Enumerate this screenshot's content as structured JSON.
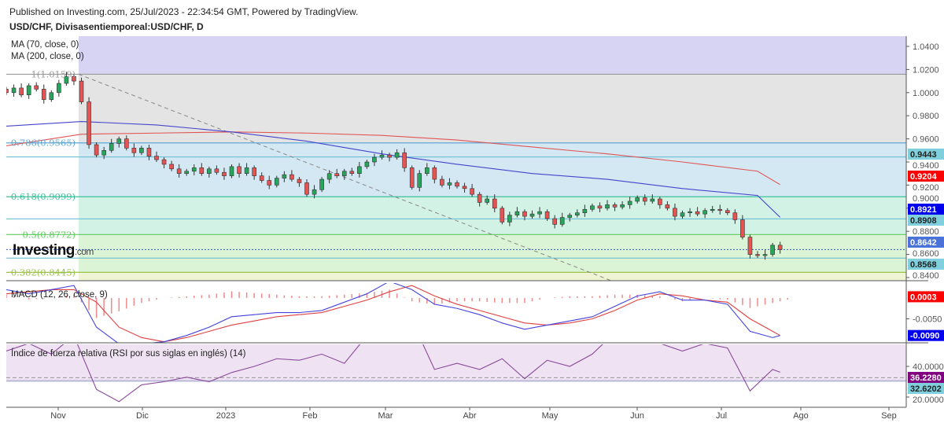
{
  "header": {
    "published": "Published on Investing.com, 25/Jul/2023 - 22:34:54 GMT, Powered by TradingView.",
    "symbol": "USD/CHF, Divisasentiemporeal:USD/CHF, D"
  },
  "logo": {
    "text": "Investing",
    "suffix": ".com"
  },
  "chart_data": [
    {
      "type": "candlestick",
      "title": "USD/CHF, Divisasentiemporeal:USD/CHF, D",
      "legend": [
        "MA (70, close, 0)",
        "MA (200, close, 0)"
      ],
      "x_ticks": [
        "Nov",
        "Dic",
        "2023",
        "Feb",
        "Mar",
        "Abr",
        "May",
        "Jun",
        "Jul",
        "Ago",
        "Sep"
      ],
      "y_ticks": [
        "1.0400",
        "1.0200",
        "1.0000",
        "0.9800",
        "0.9600",
        "0.9400",
        "0.9200",
        "0.9000",
        "0.8800",
        "0.8600",
        "0.8400"
      ],
      "ylim": [
        0.835,
        1.045
      ],
      "closes": [
        1.0,
        1.004,
        0.998,
        1.006,
        1.003,
        0.994,
        1.0,
        1.008,
        1.014,
        1.01,
        0.992,
        0.955,
        0.946,
        0.95,
        0.956,
        0.96,
        0.952,
        0.948,
        0.952,
        0.945,
        0.942,
        0.938,
        0.934,
        0.93,
        0.932,
        0.935,
        0.93,
        0.934,
        0.931,
        0.928,
        0.936,
        0.93,
        0.935,
        0.928,
        0.924,
        0.92,
        0.926,
        0.929,
        0.925,
        0.922,
        0.912,
        0.916,
        0.925,
        0.93,
        0.928,
        0.932,
        0.93,
        0.936,
        0.94,
        0.944,
        0.946,
        0.944,
        0.948,
        0.935,
        0.918,
        0.93,
        0.935,
        0.925,
        0.92,
        0.922,
        0.919,
        0.917,
        0.912,
        0.905,
        0.908,
        0.9,
        0.888,
        0.894,
        0.897,
        0.893,
        0.895,
        0.897,
        0.891,
        0.886,
        0.892,
        0.894,
        0.896,
        0.899,
        0.902,
        0.9,
        0.903,
        0.901,
        0.903,
        0.906,
        0.909,
        0.906,
        0.908,
        0.903,
        0.9,
        0.893,
        0.896,
        0.897,
        0.895,
        0.898,
        0.899,
        0.898,
        0.896,
        0.89,
        0.875,
        0.86,
        0.859,
        0.86,
        0.868,
        0.8642
      ],
      "ma70": [
        0.971,
        0.975,
        0.972,
        0.966,
        0.958,
        0.947,
        0.938,
        0.93,
        0.925,
        0.917,
        0.911,
        0.8921
      ],
      "ma200": [
        0.954,
        0.964,
        0.965,
        0.966,
        0.965,
        0.963,
        0.959,
        0.953,
        0.947,
        0.94,
        0.932,
        0.9204
      ],
      "fib_levels": [
        {
          "ratio": "1",
          "price": 1.0159,
          "label": "1(1.0159)",
          "color": "#999999"
        },
        {
          "ratio": "0.786",
          "price": 0.9565,
          "label": "0.786(0.9565)",
          "color": "#5fa8d3"
        },
        {
          "ratio": "0.618",
          "price": 0.9099,
          "label": "0.618(0.9099)",
          "color": "#3cbf9a"
        },
        {
          "ratio": "0.5",
          "price": 0.8772,
          "label": "0.5(0.8772)",
          "color": "#5fc85f"
        },
        {
          "ratio": "0.382",
          "price": 0.8445,
          "label": "0.382(0.8445)",
          "color": "#9bc34a"
        }
      ],
      "horizontal_lines": [
        0.9443,
        0.8908,
        0.8568
      ],
      "price_badges": [
        {
          "text": "0.9443",
          "price": 0.9443,
          "color": "#7fcfdc",
          "text_color": "#222"
        },
        {
          "text": "0.9204",
          "price": 0.9204,
          "color": "#ff0000",
          "text_color": "#fff"
        },
        {
          "text": "0.8921",
          "price": 0.8921,
          "color": "#0000ee",
          "text_color": "#fff"
        },
        {
          "text": "0.8908",
          "price": 0.8908,
          "color": "#7fcfdc",
          "text_color": "#222"
        },
        {
          "text": "0.8642",
          "price": 0.8642,
          "color": "#4a72d8",
          "text_color": "#fff"
        },
        {
          "text": "0.8568",
          "price": 0.8568,
          "color": "#7fcfdc",
          "text_color": "#222"
        }
      ],
      "colors": {
        "up": "#26a65b",
        "down": "#e55353",
        "ma70": "#4444cc",
        "ma200": "#e05555"
      }
    },
    {
      "type": "line",
      "title": "MACD (12, 26, close, 9)",
      "y_ticks": [
        "-0.0050"
      ],
      "ylim": [
        -0.0103,
        0.0032
      ],
      "macd": [
        0.002,
        0.001,
        0.002,
        0.003,
        -0.007,
        -0.011,
        -0.011,
        -0.0105,
        -0.009,
        -0.007,
        -0.0045,
        -0.004,
        -0.0035,
        -0.0035,
        -0.003,
        -0.001,
        0.001,
        0.004,
        0.002,
        -0.0015,
        -0.0025,
        -0.004,
        -0.006,
        -0.0075,
        -0.0065,
        -0.0055,
        -0.0045,
        -0.002,
        0.0005,
        0.0015,
        -0.0005,
        -0.0005,
        -0.0015,
        -0.008,
        -0.0095,
        -0.009
      ],
      "signal": [
        0.001,
        0.0015,
        0.002,
        0.002,
        -0.001,
        -0.007,
        -0.0095,
        -0.0105,
        -0.0095,
        -0.008,
        -0.0065,
        -0.0055,
        -0.0045,
        -0.004,
        -0.0035,
        -0.002,
        -0.0005,
        0.0015,
        0.003,
        0.0005,
        -0.0015,
        -0.003,
        -0.0045,
        -0.006,
        -0.0065,
        -0.006,
        -0.005,
        -0.003,
        -0.0005,
        0.001,
        0.0005,
        -0.0005,
        -0.001,
        -0.005,
        -0.008,
        -0.009
      ],
      "badges": [
        {
          "text": "0.0003",
          "value": 0.0003,
          "color": "#ff0000"
        },
        {
          "text": "-0.0090",
          "value": -0.009,
          "color": "#0000ee"
        }
      ]
    },
    {
      "type": "line",
      "title": "Índice de fuerza relativa (RSI por sus siglas en inglés) (14)",
      "y_ticks": [
        "40.0000",
        "20.0000"
      ],
      "ylim": [
        13,
        54
      ],
      "rsi": [
        50,
        55,
        48,
        60,
        25,
        17,
        28,
        30,
        33,
        30,
        36,
        40,
        45,
        44,
        48,
        42,
        60,
        62,
        70,
        38,
        42,
        38,
        45,
        32,
        44,
        40,
        48,
        62,
        70,
        55,
        50,
        55,
        52,
        24,
        38,
        36.228
      ],
      "lower_band": 32.6202,
      "badges": [
        {
          "text": "36.2280",
          "value": 36.228,
          "color": "#800080"
        },
        {
          "text": "32.6202",
          "value": 32.6202,
          "color": "#7fcfdc"
        }
      ]
    }
  ]
}
